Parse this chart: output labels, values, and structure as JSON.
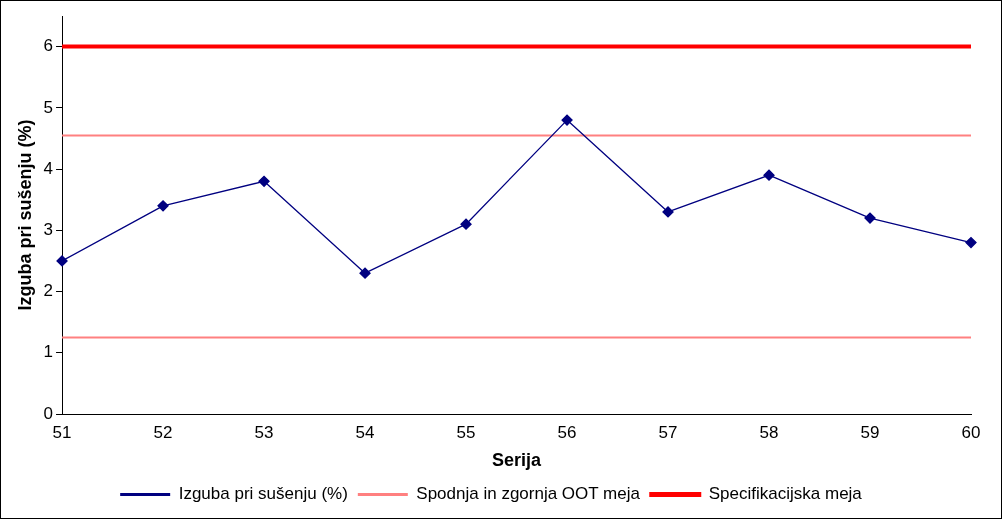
{
  "chart_data": {
    "type": "line",
    "xlabel": "Serija",
    "ylabel": "Izguba pri sušenju (%)",
    "categories": [
      "51",
      "52",
      "53",
      "54",
      "55",
      "56",
      "57",
      "58",
      "59",
      "60"
    ],
    "series": [
      {
        "name": "Izguba pri sušenju (%)",
        "color": "#000080",
        "values": [
          2.5,
          3.4,
          3.8,
          2.3,
          3.1,
          4.8,
          3.3,
          3.9,
          3.2,
          2.8
        ]
      }
    ],
    "ref_lines": [
      {
        "axis": "y",
        "value": 4.55,
        "label": "Spodnja in zgornja OOT meja",
        "color": "#ff8080"
      },
      {
        "axis": "y",
        "value": 1.25,
        "color": "#ff8080"
      },
      {
        "axis": "y",
        "value": 6,
        "label": "Specifikacijska meja",
        "color": "#ff0000"
      }
    ],
    "ylim": [
      0,
      6.5
    ],
    "yticks": [
      0,
      1,
      2,
      3,
      4,
      5,
      6
    ],
    "marker": "diamond",
    "legend": "bottom",
    "grid": false
  }
}
